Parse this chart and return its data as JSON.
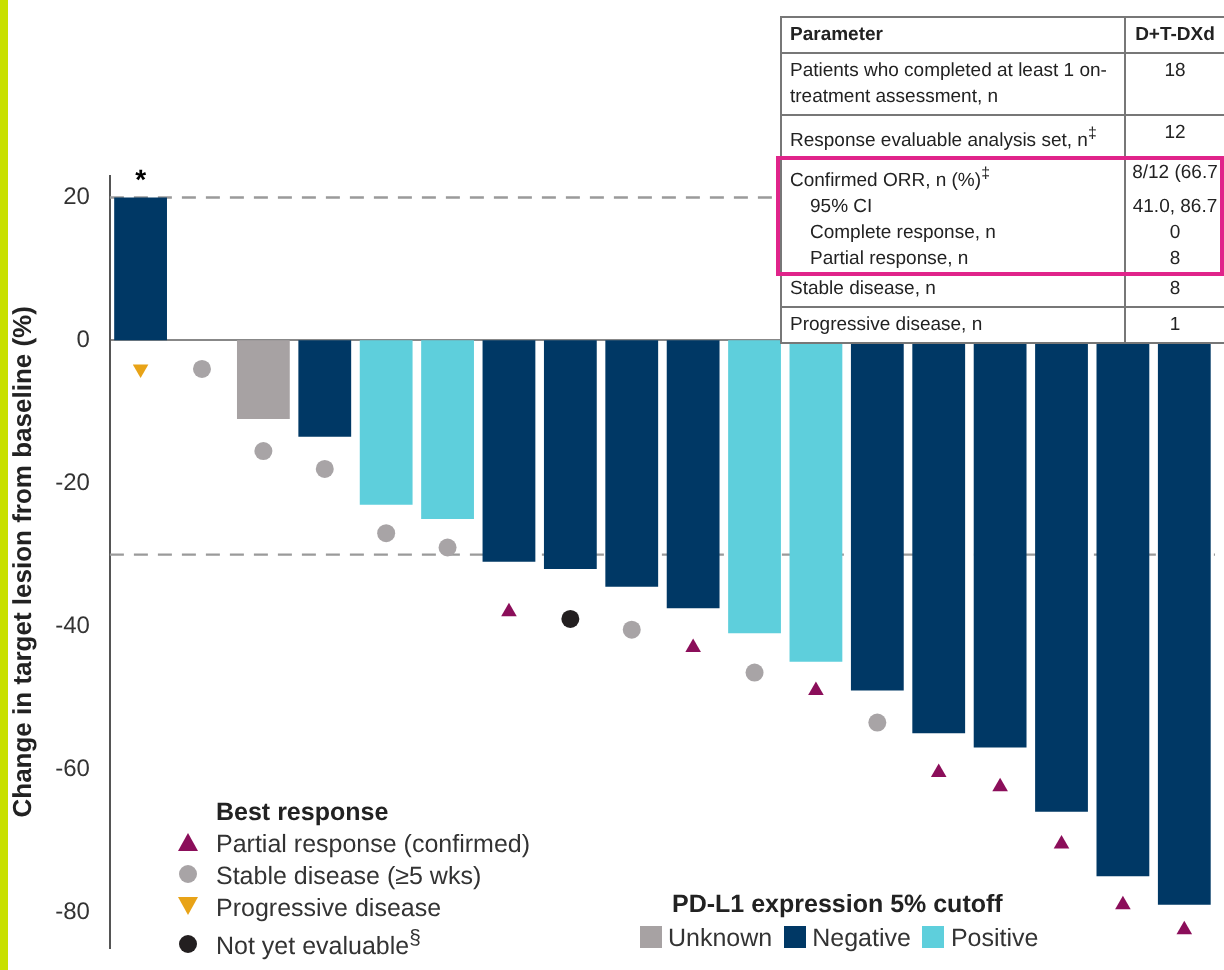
{
  "chart_data": {
    "type": "bar",
    "stacked": true,
    "ylabel": "Change in target lesion from baseline (%)",
    "ylim": [
      -85,
      23
    ],
    "yticks": [
      -80,
      -60,
      -40,
      -20,
      0,
      20
    ],
    "grid": false,
    "legend": "bottom",
    "legend_title": "PD-L1 expression 5% cutoff",
    "categories": [
      null,
      null,
      null,
      null,
      null,
      null,
      null,
      null,
      null,
      null,
      null,
      null,
      null,
      null,
      null,
      null,
      null,
      null
    ],
    "series": [
      {
        "name": "Unknown",
        "color": "#a7a2a3",
        "values": [
          null,
          0,
          -11,
          null,
          null,
          null,
          null,
          null,
          null,
          null,
          null,
          null,
          null,
          null,
          null,
          null,
          null,
          null
        ]
      },
      {
        "name": "Negative",
        "color": "#003865",
        "values": [
          20,
          null,
          null,
          -13.5,
          null,
          null,
          -31,
          -32,
          -34.5,
          -37.5,
          null,
          null,
          -49,
          -55,
          -57,
          -66,
          -75,
          -79
        ]
      },
      {
        "name": "Positive",
        "color": "#5ecfdc",
        "values": [
          null,
          null,
          null,
          null,
          -23,
          -25,
          null,
          null,
          null,
          null,
          -41,
          -45,
          null,
          null,
          null,
          null,
          null,
          null
        ]
      },
      {
        "name": "Partial response (confirmed)",
        "type": "scatter",
        "marker": "triangle",
        "color": "#8b0e5a",
        "values": [
          null,
          null,
          null,
          null,
          null,
          null,
          -38,
          null,
          null,
          -43,
          null,
          -49,
          null,
          -60.5,
          -62.5,
          -70.5,
          -79,
          -82.5
        ]
      },
      {
        "name": "Stable disease (≥5 wks)",
        "type": "scatter",
        "marker": "circle",
        "color": "#a8a4a6",
        "values": [
          null,
          -4,
          -15.5,
          -18,
          -27,
          -29,
          null,
          null,
          -40.5,
          null,
          -46.5,
          null,
          -53.5,
          null,
          null,
          null,
          null,
          null
        ]
      },
      {
        "name": "Progressive disease",
        "type": "scatter",
        "marker": "triangle-down",
        "color": "#e8a317",
        "values": [
          -4,
          null,
          null,
          null,
          null,
          null,
          null,
          null,
          null,
          null,
          null,
          null,
          null,
          null,
          null,
          null,
          null,
          null
        ]
      },
      {
        "name": "Not yet evaluable$^{§}$",
        "type": "scatter",
        "marker": "circle",
        "color": "#231f20",
        "values": [
          null,
          null,
          null,
          null,
          null,
          null,
          null,
          -39,
          null,
          null,
          null,
          null,
          null,
          null,
          null,
          null,
          null,
          null
        ]
      }
    ],
    "ref_lines": [
      {
        "axis": "y",
        "value": 20,
        "color": "#9a9a9a",
        "line_style": "dashed"
      },
      {
        "axis": "y",
        "value": -30,
        "color": "#9a9a9a",
        "line_style": "dashed"
      }
    ],
    "annotations": [
      {
        "text": "*",
        "y": 20
      },
      "Best response",
      "Parameter",
      "D+T-DXd",
      "Patients who completed at least 1 on-treatment assessment, n",
      "18",
      "Response evaluable analysis set, n$^{‡}$",
      "12",
      "Confirmed ORR, n (%)$^{‡}$",
      "8/12 (66.7",
      "95% CI",
      "41.0, 86.7",
      "Complete response, n",
      "0",
      "Partial response, n",
      "8",
      "Stable disease, n",
      "8",
      "Progressive disease, n",
      "1"
    ]
  }
}
